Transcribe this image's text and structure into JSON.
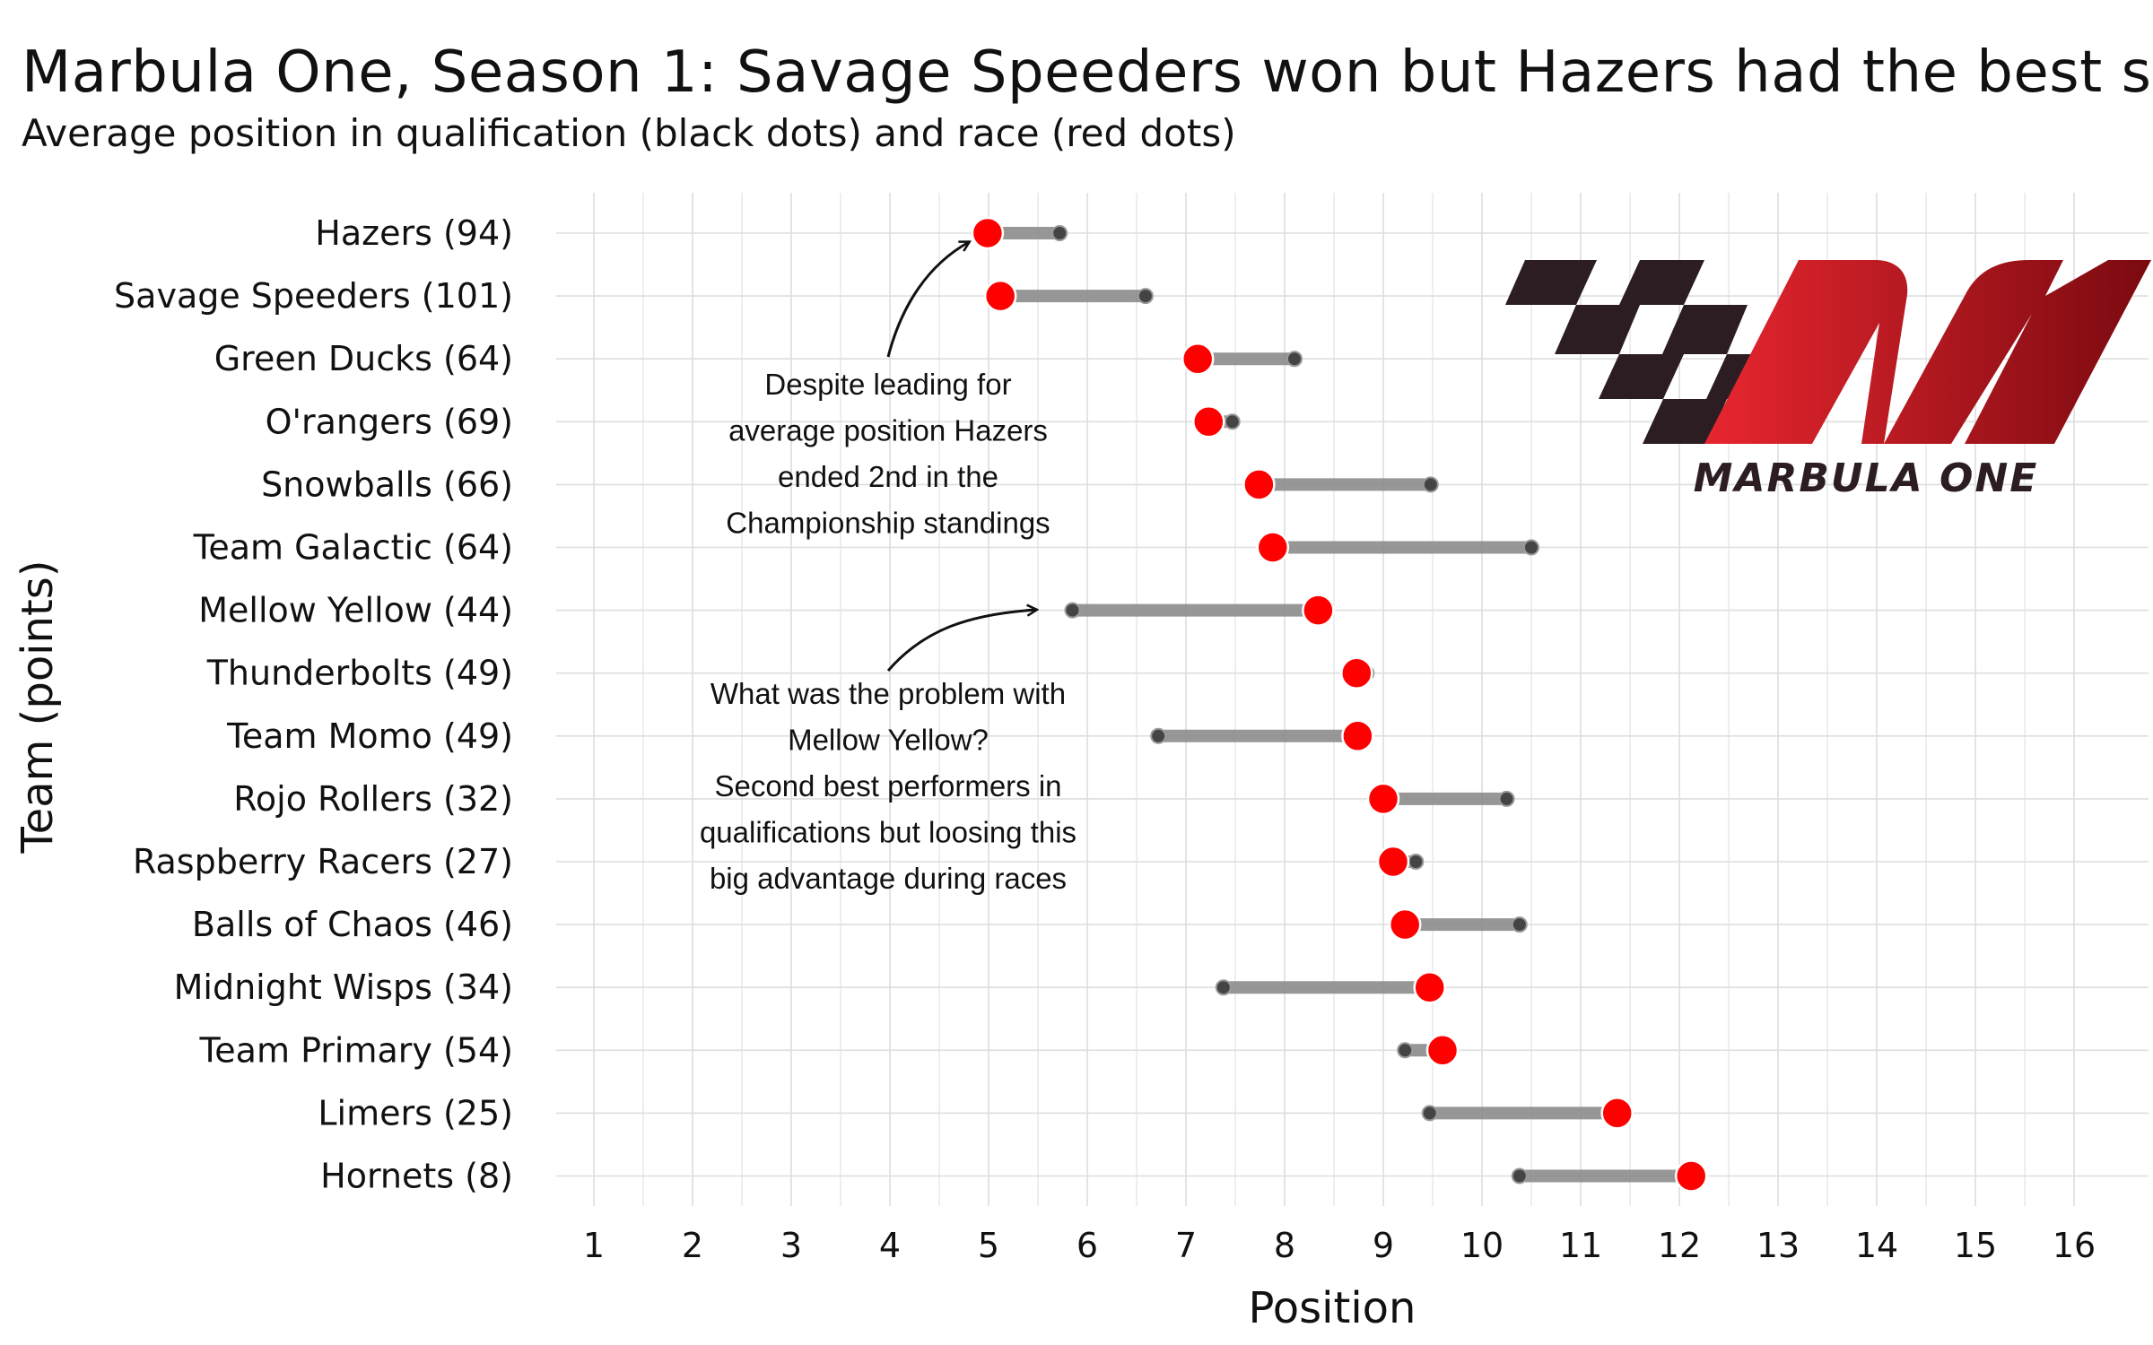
{
  "title": "Marbula One, Season 1: Savage Speeders won but Hazers had the best s",
  "subtitle": "Average position in qualification (black dots) and race (red dots)",
  "logo": {
    "text": "MARBULA ONE"
  },
  "colors": {
    "race": "#ff0000",
    "qualification": "#444444",
    "segment": "#8c8c8c",
    "grid": "#dedede",
    "logo_red": "#d0202a",
    "logo_dark": "#2b1d22"
  },
  "chart_data": {
    "type": "dumbbell",
    "xlabel": "Position",
    "ylabel": "Team (points)",
    "xlim": [
      0.6,
      16.4
    ],
    "xticks": [
      "1",
      "2",
      "3",
      "4",
      "5",
      "6",
      "7",
      "8",
      "9",
      "10",
      "11",
      "12",
      "13",
      "14",
      "15",
      "16"
    ],
    "grid": true,
    "series_names": [
      "qualification",
      "race"
    ],
    "teams": [
      {
        "label": "Hazers (94)",
        "qualification": 5.72,
        "race": 4.99
      },
      {
        "label": "Savage Speeders (101)",
        "qualification": 6.59,
        "race": 5.12
      },
      {
        "label": "Green Ducks (64)",
        "qualification": 8.1,
        "race": 7.12
      },
      {
        "label": "O'rangers (69)",
        "qualification": 7.47,
        "race": 7.23
      },
      {
        "label": "Snowballs (66)",
        "qualification": 9.48,
        "race": 7.74
      },
      {
        "label": "Team Galactic (64)",
        "qualification": 10.5,
        "race": 7.88
      },
      {
        "label": "Mellow Yellow (44)",
        "qualification": 5.85,
        "race": 8.34
      },
      {
        "label": "Thunderbolts (49)",
        "qualification": 8.83,
        "race": 8.73
      },
      {
        "label": "Team Momo (49)",
        "qualification": 6.72,
        "race": 8.74
      },
      {
        "label": "Rojo Rollers (32)",
        "qualification": 10.25,
        "race": 9.0
      },
      {
        "label": "Raspberry Racers (27)",
        "qualification": 9.33,
        "race": 9.1
      },
      {
        "label": "Balls of Chaos (46)",
        "qualification": 10.38,
        "race": 9.22
      },
      {
        "label": "Midnight Wisps (34)",
        "qualification": 7.38,
        "race": 9.47
      },
      {
        "label": "Team Primary (54)",
        "qualification": 9.22,
        "race": 9.6
      },
      {
        "label": "Limers (25)",
        "qualification": 9.47,
        "race": 11.37
      },
      {
        "label": "Hornets (8)",
        "qualification": 10.38,
        "race": 12.12
      }
    ],
    "annotations": [
      {
        "lines": [
          "Despite leading for",
          "average position Hazers",
          "ended 2nd in the",
          "Championship standings"
        ]
      },
      {
        "lines": [
          "What was the problem with",
          "Mellow Yellow?",
          "Second best performers in",
          "qualifications but loosing this",
          "big advantage during races"
        ]
      }
    ]
  }
}
